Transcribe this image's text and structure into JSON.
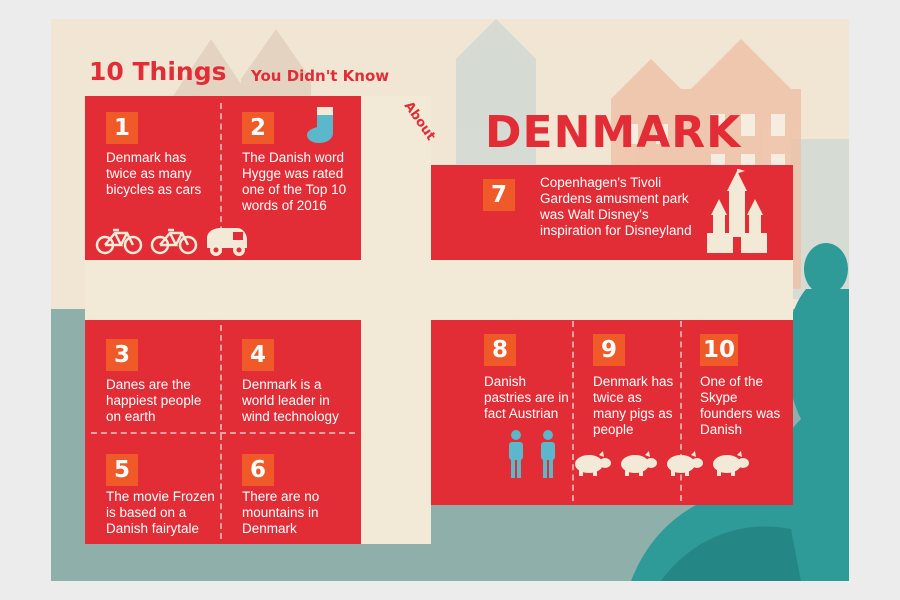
{
  "title": {
    "number_things": "10 Things",
    "subtitle": "You Didn't Know",
    "about": "About",
    "country": "DENMARK"
  },
  "colors": {
    "flag_red": "#e22d36",
    "number_orange": "#f05a28",
    "cross_cream": "#f2e9d6",
    "water_teal": "#8fb0aa",
    "statue_teal": "#2f9b98",
    "icon_blue": "#5bb7c9"
  },
  "facts": [
    {
      "number": "1",
      "text": "Denmark has twice as many bicycles as cars",
      "icons": [
        "bicycle-icon",
        "bicycle-icon",
        "car-icon"
      ]
    },
    {
      "number": "2",
      "text": "The Danish word Hygge was rated one of the Top 10 words of 2016",
      "icons": [
        "sock-icon"
      ]
    },
    {
      "number": "3",
      "text": "Danes are the happiest people on earth",
      "icons": []
    },
    {
      "number": "4",
      "text": "Denmark is a world leader in wind technology",
      "icons": []
    },
    {
      "number": "5",
      "text": "The movie Frozen is based on a Danish fairytale",
      "icons": []
    },
    {
      "number": "6",
      "text": "There are no mountains in Denmark",
      "icons": []
    },
    {
      "number": "7",
      "text": "Copenhagen's Tivoli Gardens amusment park was Walt Disney's inspiration for Disneyland",
      "icons": [
        "castle-icon"
      ]
    },
    {
      "number": "8",
      "text": "Danish pastries are in fact Austrian",
      "icons": [
        "person-icon",
        "person-icon"
      ]
    },
    {
      "number": "9",
      "text": "Denmark has twice as many pigs as people",
      "icons": [
        "pig-icon",
        "pig-icon",
        "pig-icon",
        "pig-icon"
      ]
    },
    {
      "number": "10",
      "text": "One of the Skype founders was Danish",
      "icons": []
    }
  ]
}
